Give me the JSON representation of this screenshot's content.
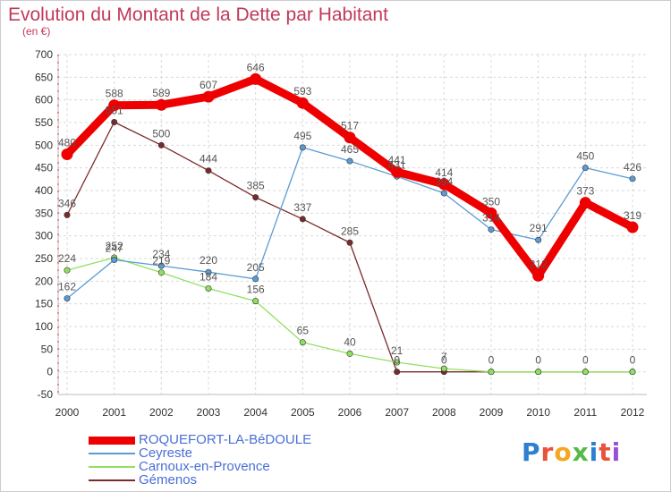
{
  "chart_data": {
    "type": "line",
    "title": "Evolution du Montant de la Dette par Habitant",
    "subtitle": "(en €)",
    "xlabel": "",
    "ylabel": "",
    "categories": [
      "2000",
      "2001",
      "2002",
      "2003",
      "2004",
      "2005",
      "2006",
      "2007",
      "2008",
      "2009",
      "2010",
      "2011",
      "2012"
    ],
    "ylim": [
      -50,
      700
    ],
    "ytick_step": 50,
    "grid": true,
    "legend_position": "bottom-left",
    "series": [
      {
        "name": "ROQUEFORT-LA-BéDOULE",
        "color": "#ee0000",
        "emphasis": true,
        "values": [
          480,
          588,
          589,
          607,
          646,
          593,
          517,
          441,
          414,
          350,
          212,
          373,
          319
        ]
      },
      {
        "name": "Ceyreste",
        "color": "#5b9bd5",
        "emphasis": false,
        "values": [
          162,
          247,
          234,
          220,
          205,
          495,
          465,
          431,
          394,
          314,
          291,
          450,
          426
        ]
      },
      {
        "name": "Carnoux-en-Provence",
        "color": "#90e060",
        "emphasis": false,
        "values": [
          224,
          252,
          219,
          184,
          156,
          65,
          40,
          21,
          7,
          0,
          0,
          0,
          0
        ]
      },
      {
        "name": "Gémenos",
        "color": "#7a2a2a",
        "emphasis": false,
        "values": [
          346,
          551,
          500,
          444,
          385,
          337,
          285,
          0,
          0,
          0,
          0,
          0,
          0
        ]
      }
    ],
    "data_labels": [
      {
        "series": 0,
        "index": 0,
        "text": "480"
      },
      {
        "series": 0,
        "index": 1,
        "text": "588"
      },
      {
        "series": 0,
        "index": 2,
        "text": "589"
      },
      {
        "series": 0,
        "index": 3,
        "text": "607"
      },
      {
        "series": 0,
        "index": 4,
        "text": "646"
      },
      {
        "series": 0,
        "index": 5,
        "text": "593"
      },
      {
        "series": 0,
        "index": 6,
        "text": "517"
      },
      {
        "series": 0,
        "index": 7,
        "text": "441"
      },
      {
        "series": 0,
        "index": 8,
        "text": "414"
      },
      {
        "series": 0,
        "index": 9,
        "text": "350"
      },
      {
        "series": 0,
        "index": 10,
        "text": "212"
      },
      {
        "series": 0,
        "index": 11,
        "text": "373"
      },
      {
        "series": 0,
        "index": 12,
        "text": "319"
      },
      {
        "series": 1,
        "index": 0,
        "text": "162"
      },
      {
        "series": 1,
        "index": 1,
        "text": "247"
      },
      {
        "series": 1,
        "index": 2,
        "text": "234"
      },
      {
        "series": 1,
        "index": 3,
        "text": "220"
      },
      {
        "series": 1,
        "index": 4,
        "text": "205"
      },
      {
        "series": 1,
        "index": 5,
        "text": "495"
      },
      {
        "series": 1,
        "index": 6,
        "text": "465"
      },
      {
        "series": 1,
        "index": 7,
        "text": "431"
      },
      {
        "series": 1,
        "index": 8,
        "text": "394"
      },
      {
        "series": 1,
        "index": 9,
        "text": "314"
      },
      {
        "series": 1,
        "index": 10,
        "text": "291"
      },
      {
        "series": 1,
        "index": 11,
        "text": "450"
      },
      {
        "series": 1,
        "index": 12,
        "text": "426"
      },
      {
        "series": 2,
        "index": 0,
        "text": "224"
      },
      {
        "series": 2,
        "index": 1,
        "text": "252"
      },
      {
        "series": 2,
        "index": 2,
        "text": "219"
      },
      {
        "series": 2,
        "index": 3,
        "text": "184"
      },
      {
        "series": 2,
        "index": 4,
        "text": "156"
      },
      {
        "series": 2,
        "index": 5,
        "text": "65"
      },
      {
        "series": 2,
        "index": 6,
        "text": "40"
      },
      {
        "series": 2,
        "index": 7,
        "text": "21"
      },
      {
        "series": 2,
        "index": 8,
        "text": "7"
      },
      {
        "series": 3,
        "index": 0,
        "text": "346"
      },
      {
        "series": 3,
        "index": 1,
        "text": "551"
      },
      {
        "series": 3,
        "index": 2,
        "text": "500"
      },
      {
        "series": 3,
        "index": 3,
        "text": "444"
      },
      {
        "series": 3,
        "index": 4,
        "text": "385"
      },
      {
        "series": 3,
        "index": 5,
        "text": "337"
      },
      {
        "series": 3,
        "index": 6,
        "text": "285"
      },
      {
        "series": 3,
        "index": 7,
        "text": "0"
      },
      {
        "series": 3,
        "index": 8,
        "text": "0"
      },
      {
        "series": 3,
        "index": 9,
        "text": "0"
      },
      {
        "series": 3,
        "index": 10,
        "text": "0"
      },
      {
        "series": 3,
        "index": 11,
        "text": "0"
      },
      {
        "series": 3,
        "index": 12,
        "text": "0"
      }
    ]
  },
  "logo": {
    "text": "Proxiti",
    "letter_colors": [
      "#2f7fd0",
      "#e8523a",
      "#f5a623",
      "#57b947",
      "#2f7fd0",
      "#e8523a",
      "#9c4fd6"
    ]
  },
  "theme": {
    "title_color": "#c0395a",
    "axis_text_color": "#333333",
    "grid_color": "#d9d9d9",
    "label_color": "#555555",
    "legend_text_color": "#4a6fd6"
  }
}
